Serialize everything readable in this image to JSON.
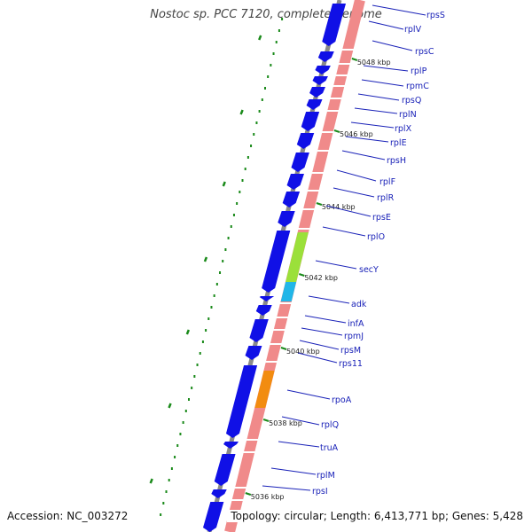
{
  "title": "Nostoc sp. PCC 7120, complete genome",
  "accession": "Accession: NC_003272",
  "summary": "Topology: circular; Length: 6,413,771 bp; Genes: 5,428",
  "kbp_labels": [
    "5048 kbp",
    "5046 kbp",
    "5044 kbp",
    "5042 kbp",
    "5040 kbp",
    "5038 kbp",
    "5036 kbp"
  ],
  "genes": [
    "rpsS",
    "rplV",
    "rpsC",
    "rplP",
    "rpmC",
    "rpsQ",
    "rplN",
    "rplX",
    "rplE",
    "rpsH",
    "rplF",
    "rplR",
    "rpsE",
    "rplO",
    "secY",
    "adk",
    "infA",
    "rpmJ",
    "rpsM",
    "rps11",
    "rpoA",
    "rplQ",
    "truA",
    "rplM",
    "rpsI"
  ],
  "colors": {
    "backbone": "#8a8a8a",
    "cds": "#1010e6",
    "feature_track": "#f08a8a",
    "secY": "#9be03a",
    "adk": "#21b6e8",
    "rpoA": "#f28c10",
    "gc_marks": "#1a8a1a",
    "label": "#1a22b8"
  }
}
